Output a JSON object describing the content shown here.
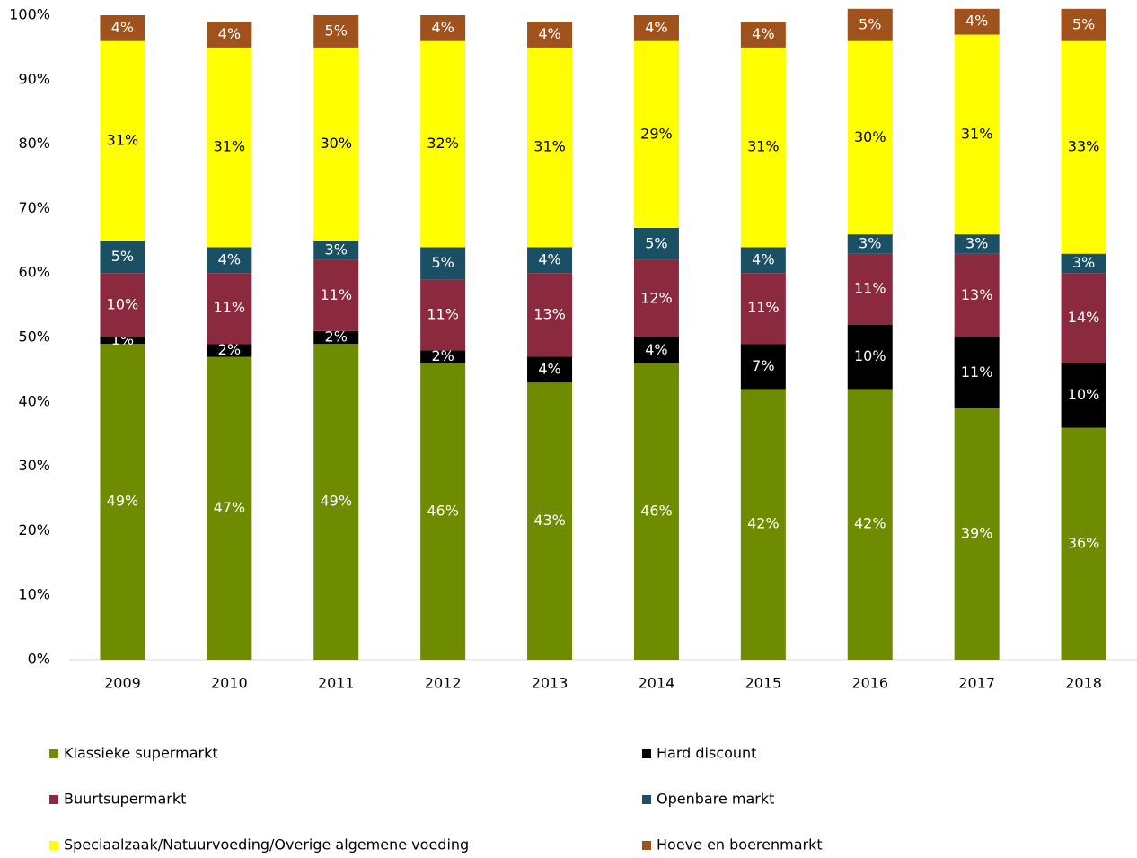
{
  "chart_data": {
    "type": "stacked_bar",
    "categories": [
      "2009",
      "2010",
      "2011",
      "2012",
      "2013",
      "2014",
      "2015",
      "2016",
      "2017",
      "2018"
    ],
    "series": [
      {
        "name": "Klassieke supermarkt",
        "color": "#6f8c00",
        "values": [
          49,
          47,
          49,
          46,
          43,
          46,
          42,
          42,
          39,
          36
        ],
        "value_labels": [
          "49%",
          "47%",
          "49%",
          "46%",
          "43%",
          "46%",
          "42%",
          "42%",
          "39%",
          "36%"
        ]
      },
      {
        "name": "Hard discount",
        "color": "#000000",
        "values": [
          1,
          2,
          2,
          2,
          4,
          4,
          7,
          10,
          11,
          10
        ],
        "value_labels": [
          "1%",
          "2%",
          "2%",
          "2%",
          "4%",
          "4%",
          "7%",
          "10%",
          "11%",
          "10%"
        ]
      },
      {
        "name": "Buurtsupermarkt",
        "color": "#8b2a3e",
        "values": [
          10,
          11,
          11,
          11,
          13,
          12,
          11,
          11,
          13,
          14
        ],
        "value_labels": [
          "10%",
          "11%",
          "11%",
          "11%",
          "13%",
          "12%",
          "11%",
          "11%",
          "13%",
          "14%"
        ]
      },
      {
        "name": "Openbare markt",
        "color": "#1b4f64",
        "values": [
          5,
          4,
          3,
          5,
          4,
          5,
          4,
          3,
          3,
          3
        ],
        "value_labels": [
          "5%",
          "4%",
          "3%",
          "5%",
          "4%",
          "5%",
          "4%",
          "3%",
          "3%",
          "3%"
        ]
      },
      {
        "name": "Speciaalzaak/Natuurvoeding/Overige algemene voeding",
        "color": "#ffff00",
        "values": [
          31,
          31,
          30,
          32,
          31,
          29,
          31,
          30,
          31,
          33
        ],
        "value_labels": [
          "31%",
          "31%",
          "30%",
          "32%",
          "31%",
          "29%",
          "31%",
          "30%",
          "31%",
          "33%"
        ]
      },
      {
        "name": "Hoeve en boerenmarkt",
        "color": "#a0521c",
        "values": [
          4,
          4,
          5,
          4,
          4,
          4,
          4,
          5,
          4,
          5
        ],
        "value_labels": [
          "4%",
          "4%",
          "5%",
          "4%",
          "4%",
          "4%",
          "4%",
          "5%",
          "4%",
          "5%"
        ]
      }
    ],
    "ylim": [
      0,
      100
    ],
    "yticks": [
      {
        "value": 0,
        "label": "0%"
      },
      {
        "value": 10,
        "label": "10%"
      },
      {
        "value": 20,
        "label": "20%"
      },
      {
        "value": 30,
        "label": "30%"
      },
      {
        "value": 40,
        "label": "40%"
      },
      {
        "value": 50,
        "label": "50%"
      },
      {
        "value": 60,
        "label": "60%"
      },
      {
        "value": 70,
        "label": "70%"
      },
      {
        "value": 80,
        "label": "80%"
      },
      {
        "value": 90,
        "label": "90%"
      },
      {
        "value": 100,
        "label": "100%"
      }
    ],
    "legend": "bottom"
  }
}
